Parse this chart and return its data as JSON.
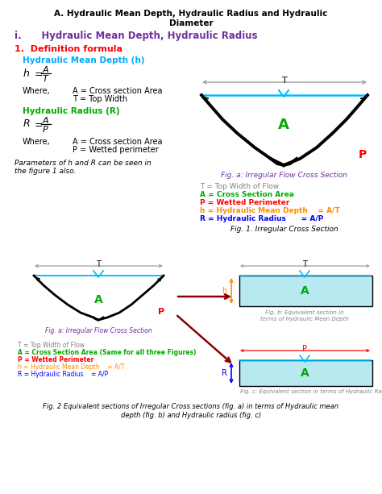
{
  "title_line1": "A. Hydraulic Mean Depth, Hydraulic Radius and Hydraulic",
  "title_line2": "Diameter",
  "subtitle": "i.      Hydraulic Mean Depth, Hydraulic Radius",
  "def_label": "1.  Definition formula",
  "hmd_label": "Hydraulic Mean Depth (h)",
  "hr_label": "Hydraulic Radius (R)",
  "fig1_caption": "Fig. a: Irregular Flow Cross Section",
  "fig1_T": "T = Top Width of Flow",
  "fig1_A": "A = Cross Section Area",
  "fig1_P": "P = Wetted Perimeter",
  "fig1_h": "h = Hydraulic Mean Depth    = A/T",
  "fig1_R": "R = Hydraulic Radius      = A/P",
  "fig1_label": "Fig. 1. Irregular Cross Section",
  "fig2a_caption": "Fig. a: Irregular Flow Cross Section",
  "fig2_legend_T": "T = Top Width of Flow",
  "fig2_legend_A": "A = Cross Section Area (Same for all three Figures)",
  "fig2_legend_P": "P = Wetted Perimeter",
  "fig2_legend_h": "h = Hydraulic Mean Depth    = A/T",
  "fig2_legend_R": "R = Hydraulic Radius    = A/P",
  "fig2b_caption": "Fig. b: Equivalent section in\nterms of Hydraulic Mean Depth",
  "fig2c_caption": "Fig. c: Equivalent section in terms of Hydraulic Radius",
  "fig2_main_cap1": "Fig. 2 Equivalent sections of Irregular Cross sections (fig. a) in terms of Hydraulic mean",
  "fig2_main_cap2": "depth (fig. b) and Hydraulic radius (fig. c)"
}
